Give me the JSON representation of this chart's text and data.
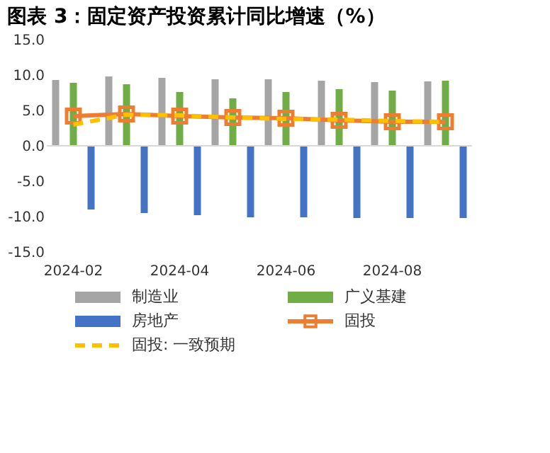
{
  "chart_data": {
    "type": "bar",
    "title": "图表 3：固定资产投资累计同比增速（%）",
    "categories": [
      "2024-02",
      null,
      "2024-04",
      null,
      "2024-06",
      null,
      "2024-08",
      null
    ],
    "series": [
      {
        "name": "制造业",
        "color": "#a5a5a5",
        "values": [
          9.3,
          9.8,
          9.6,
          9.4,
          9.4,
          9.2,
          9.0,
          9.1
        ]
      },
      {
        "name": "广义基建",
        "color": "#70ad47",
        "values": [
          8.9,
          8.7,
          7.6,
          6.7,
          7.6,
          8.0,
          7.8,
          9.2
        ]
      },
      {
        "name": "房地产",
        "color": "#4472c4",
        "values": [
          -9.0,
          -9.5,
          -9.8,
          -10.1,
          -10.1,
          -10.2,
          -10.2,
          -10.2
        ]
      },
      {
        "name": "固投",
        "type": "line",
        "color": "#ed7d31",
        "marker": "square",
        "line_style": "solid",
        "values": [
          4.2,
          4.5,
          4.2,
          4.0,
          3.9,
          3.6,
          3.4,
          3.4
        ]
      },
      {
        "name": "固投: 一致预期",
        "type": "line",
        "color": "#ffc000",
        "marker": "none",
        "line_style": "dashed",
        "values": [
          3.0,
          4.4,
          4.3,
          4.0,
          3.8,
          3.7,
          3.5,
          3.4
        ]
      }
    ],
    "ylim": [
      -15,
      15
    ],
    "yticks": [
      {
        "value": -15,
        "label": "-15.0"
      },
      {
        "value": -10,
        "label": "-10.0"
      },
      {
        "value": -5,
        "label": "-5.0"
      },
      {
        "value": 0,
        "label": "0.0"
      },
      {
        "value": 5,
        "label": "5.0"
      },
      {
        "value": 10,
        "label": "10.0"
      },
      {
        "value": 15,
        "label": "15.0"
      }
    ],
    "legend": "bottom"
  }
}
